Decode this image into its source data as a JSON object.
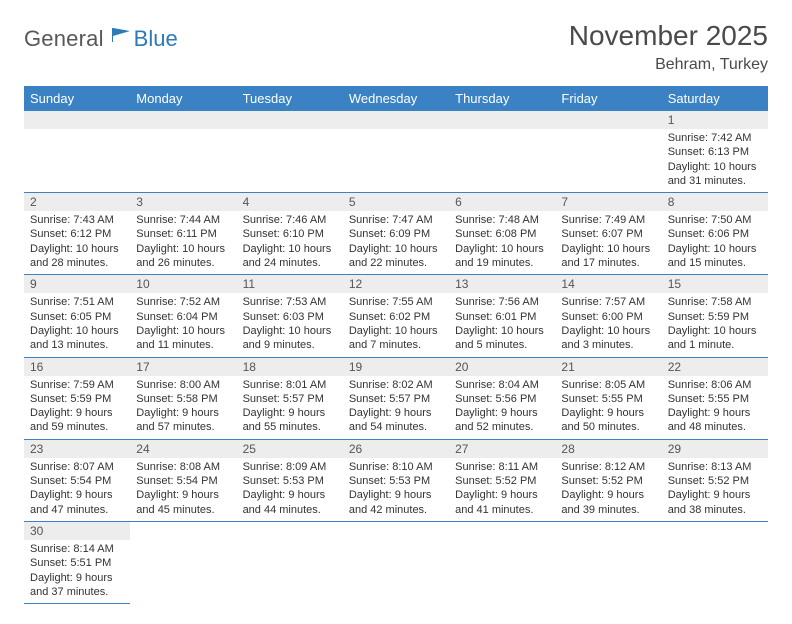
{
  "logo": {
    "text1": "General",
    "text2": "Blue"
  },
  "title": "November 2025",
  "location": "Behram, Turkey",
  "colors": {
    "header_bg": "#3b82c4",
    "header_fg": "#ffffff",
    "daynum_bg": "#ededed",
    "border": "#3b82c4"
  },
  "font": {
    "header_size": 13,
    "title_size": 28,
    "location_size": 16,
    "daynum_size": 12,
    "body_size": 11
  },
  "weekdays": [
    "Sunday",
    "Monday",
    "Tuesday",
    "Wednesday",
    "Thursday",
    "Friday",
    "Saturday"
  ],
  "weeks": [
    [
      null,
      null,
      null,
      null,
      null,
      null,
      {
        "n": "1",
        "sr": "Sunrise: 7:42 AM",
        "ss": "Sunset: 6:13 PM",
        "dl": "Daylight: 10 hours and 31 minutes."
      }
    ],
    [
      {
        "n": "2",
        "sr": "Sunrise: 7:43 AM",
        "ss": "Sunset: 6:12 PM",
        "dl": "Daylight: 10 hours and 28 minutes."
      },
      {
        "n": "3",
        "sr": "Sunrise: 7:44 AM",
        "ss": "Sunset: 6:11 PM",
        "dl": "Daylight: 10 hours and 26 minutes."
      },
      {
        "n": "4",
        "sr": "Sunrise: 7:46 AM",
        "ss": "Sunset: 6:10 PM",
        "dl": "Daylight: 10 hours and 24 minutes."
      },
      {
        "n": "5",
        "sr": "Sunrise: 7:47 AM",
        "ss": "Sunset: 6:09 PM",
        "dl": "Daylight: 10 hours and 22 minutes."
      },
      {
        "n": "6",
        "sr": "Sunrise: 7:48 AM",
        "ss": "Sunset: 6:08 PM",
        "dl": "Daylight: 10 hours and 19 minutes."
      },
      {
        "n": "7",
        "sr": "Sunrise: 7:49 AM",
        "ss": "Sunset: 6:07 PM",
        "dl": "Daylight: 10 hours and 17 minutes."
      },
      {
        "n": "8",
        "sr": "Sunrise: 7:50 AM",
        "ss": "Sunset: 6:06 PM",
        "dl": "Daylight: 10 hours and 15 minutes."
      }
    ],
    [
      {
        "n": "9",
        "sr": "Sunrise: 7:51 AM",
        "ss": "Sunset: 6:05 PM",
        "dl": "Daylight: 10 hours and 13 minutes."
      },
      {
        "n": "10",
        "sr": "Sunrise: 7:52 AM",
        "ss": "Sunset: 6:04 PM",
        "dl": "Daylight: 10 hours and 11 minutes."
      },
      {
        "n": "11",
        "sr": "Sunrise: 7:53 AM",
        "ss": "Sunset: 6:03 PM",
        "dl": "Daylight: 10 hours and 9 minutes."
      },
      {
        "n": "12",
        "sr": "Sunrise: 7:55 AM",
        "ss": "Sunset: 6:02 PM",
        "dl": "Daylight: 10 hours and 7 minutes."
      },
      {
        "n": "13",
        "sr": "Sunrise: 7:56 AM",
        "ss": "Sunset: 6:01 PM",
        "dl": "Daylight: 10 hours and 5 minutes."
      },
      {
        "n": "14",
        "sr": "Sunrise: 7:57 AM",
        "ss": "Sunset: 6:00 PM",
        "dl": "Daylight: 10 hours and 3 minutes."
      },
      {
        "n": "15",
        "sr": "Sunrise: 7:58 AM",
        "ss": "Sunset: 5:59 PM",
        "dl": "Daylight: 10 hours and 1 minute."
      }
    ],
    [
      {
        "n": "16",
        "sr": "Sunrise: 7:59 AM",
        "ss": "Sunset: 5:59 PM",
        "dl": "Daylight: 9 hours and 59 minutes."
      },
      {
        "n": "17",
        "sr": "Sunrise: 8:00 AM",
        "ss": "Sunset: 5:58 PM",
        "dl": "Daylight: 9 hours and 57 minutes."
      },
      {
        "n": "18",
        "sr": "Sunrise: 8:01 AM",
        "ss": "Sunset: 5:57 PM",
        "dl": "Daylight: 9 hours and 55 minutes."
      },
      {
        "n": "19",
        "sr": "Sunrise: 8:02 AM",
        "ss": "Sunset: 5:57 PM",
        "dl": "Daylight: 9 hours and 54 minutes."
      },
      {
        "n": "20",
        "sr": "Sunrise: 8:04 AM",
        "ss": "Sunset: 5:56 PM",
        "dl": "Daylight: 9 hours and 52 minutes."
      },
      {
        "n": "21",
        "sr": "Sunrise: 8:05 AM",
        "ss": "Sunset: 5:55 PM",
        "dl": "Daylight: 9 hours and 50 minutes."
      },
      {
        "n": "22",
        "sr": "Sunrise: 8:06 AM",
        "ss": "Sunset: 5:55 PM",
        "dl": "Daylight: 9 hours and 48 minutes."
      }
    ],
    [
      {
        "n": "23",
        "sr": "Sunrise: 8:07 AM",
        "ss": "Sunset: 5:54 PM",
        "dl": "Daylight: 9 hours and 47 minutes."
      },
      {
        "n": "24",
        "sr": "Sunrise: 8:08 AM",
        "ss": "Sunset: 5:54 PM",
        "dl": "Daylight: 9 hours and 45 minutes."
      },
      {
        "n": "25",
        "sr": "Sunrise: 8:09 AM",
        "ss": "Sunset: 5:53 PM",
        "dl": "Daylight: 9 hours and 44 minutes."
      },
      {
        "n": "26",
        "sr": "Sunrise: 8:10 AM",
        "ss": "Sunset: 5:53 PM",
        "dl": "Daylight: 9 hours and 42 minutes."
      },
      {
        "n": "27",
        "sr": "Sunrise: 8:11 AM",
        "ss": "Sunset: 5:52 PM",
        "dl": "Daylight: 9 hours and 41 minutes."
      },
      {
        "n": "28",
        "sr": "Sunrise: 8:12 AM",
        "ss": "Sunset: 5:52 PM",
        "dl": "Daylight: 9 hours and 39 minutes."
      },
      {
        "n": "29",
        "sr": "Sunrise: 8:13 AM",
        "ss": "Sunset: 5:52 PM",
        "dl": "Daylight: 9 hours and 38 minutes."
      }
    ],
    [
      {
        "n": "30",
        "sr": "Sunrise: 8:14 AM",
        "ss": "Sunset: 5:51 PM",
        "dl": "Daylight: 9 hours and 37 minutes."
      },
      null,
      null,
      null,
      null,
      null,
      null
    ]
  ]
}
